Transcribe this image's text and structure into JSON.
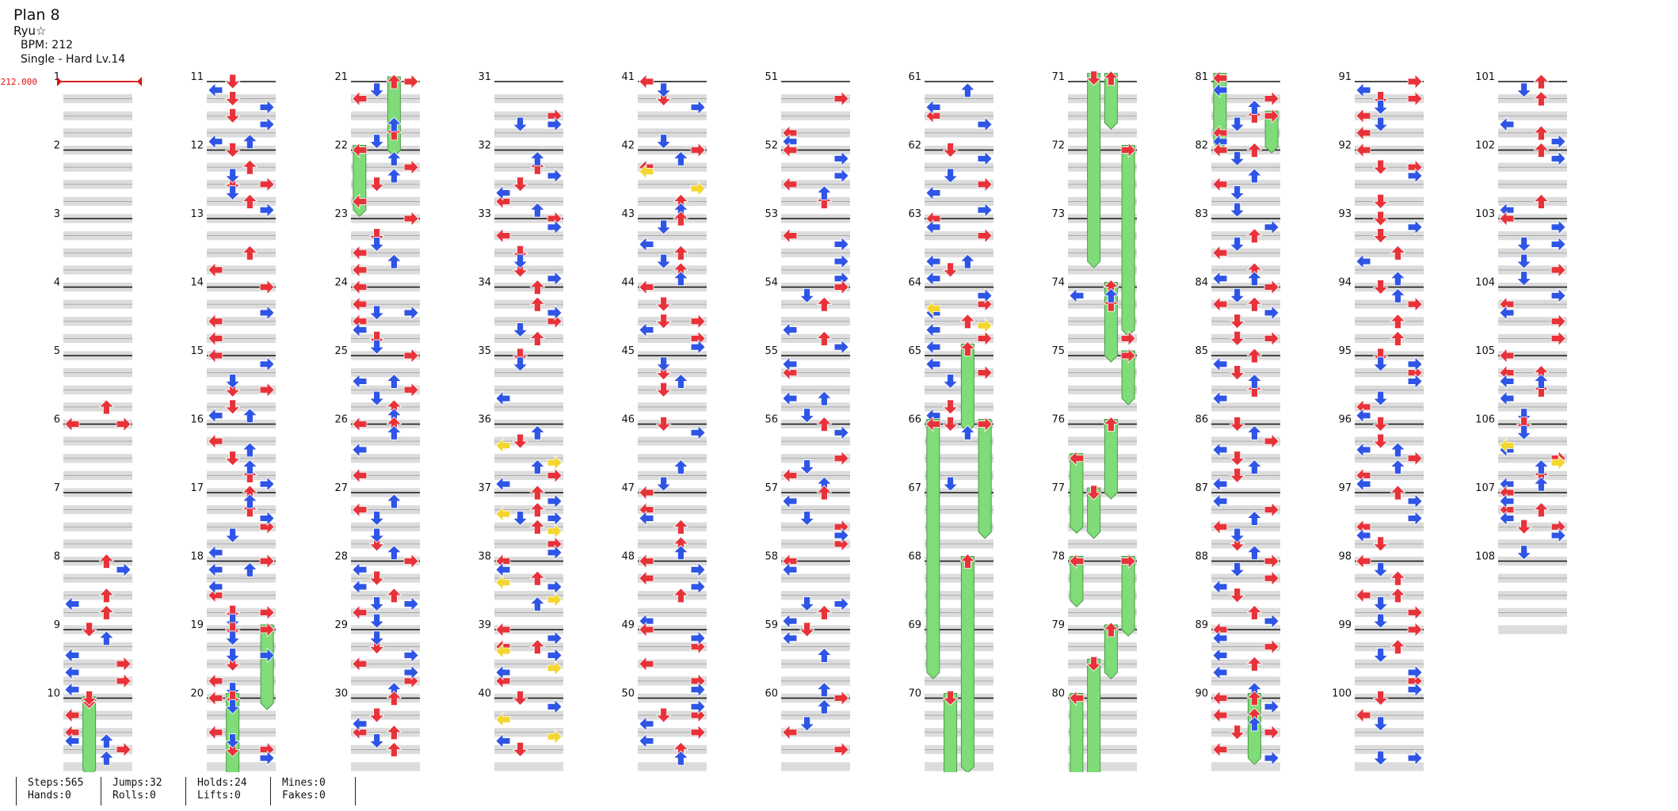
{
  "header": {
    "title": "Plan 8",
    "artist": "Ryu☆",
    "bpm_text": "BPM: 212",
    "difficulty_text": "Single - Hard  Lv.14"
  },
  "bpm_marker": "212.000",
  "measure_numbers": [
    "1",
    "2",
    "3",
    "4",
    "5",
    "6",
    "7",
    "8",
    "9",
    "10",
    "11",
    "12",
    "13",
    "14",
    "15",
    "16",
    "17",
    "18",
    "19",
    "20",
    "21",
    "22",
    "23",
    "24",
    "25",
    "26",
    "27",
    "28",
    "29",
    "30",
    "31",
    "32",
    "33",
    "34",
    "35",
    "36",
    "37",
    "38",
    "39",
    "40",
    "41",
    "42",
    "43",
    "44",
    "45",
    "46",
    "47",
    "48",
    "49",
    "50",
    "51",
    "52",
    "53",
    "54",
    "55",
    "56",
    "57",
    "58",
    "59",
    "60",
    "61",
    "62",
    "63",
    "64",
    "65",
    "66",
    "67",
    "68",
    "69",
    "70",
    "71",
    "72",
    "73",
    "74",
    "75",
    "76",
    "77",
    "78",
    "79",
    "80",
    "81",
    "82",
    "83",
    "84",
    "85",
    "86",
    "87",
    "88",
    "89",
    "90",
    "91",
    "92",
    "93",
    "94",
    "95",
    "96",
    "97",
    "98",
    "99",
    "100",
    "101",
    "102",
    "103",
    "104",
    "105",
    "106",
    "107",
    "108"
  ],
  "stats": [
    {
      "line1": "Steps:565",
      "line2": "Hands:0"
    },
    {
      "line1": "Jumps:32",
      "line2": "Rolls:0"
    },
    {
      "line1": "Holds:24",
      "line2": "Lifts:0"
    },
    {
      "line1": "Mines:0",
      "line2": "Fakes:0"
    }
  ],
  "colors": {
    "quarter_note": "#e8323a",
    "eighth_note": "#2f55e6",
    "sixteenth_note": "#f3d630",
    "hold_body": "#7fdc78",
    "stripe": "#dcdcdc",
    "bpm_marker": "#dd1111"
  },
  "icons": {
    "left": "left-arrow-icon",
    "down": "down-arrow-icon",
    "up": "up-arrow-icon",
    "right": "right-arrow-icon"
  }
}
